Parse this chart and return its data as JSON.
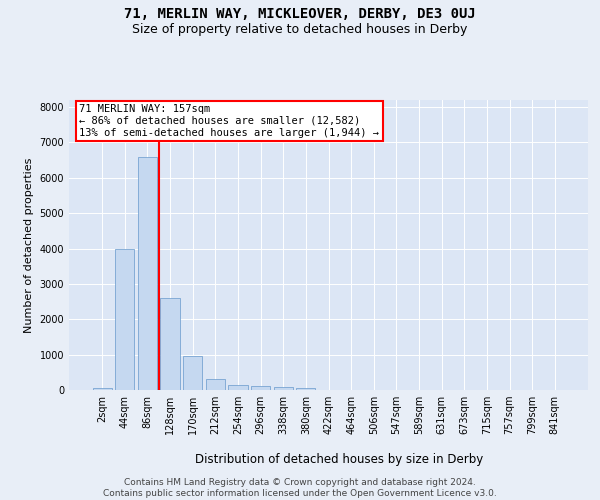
{
  "title": "71, MERLIN WAY, MICKLEOVER, DERBY, DE3 0UJ",
  "subtitle": "Size of property relative to detached houses in Derby",
  "xlabel": "Distribution of detached houses by size in Derby",
  "ylabel": "Number of detached properties",
  "bin_labels": [
    "2sqm",
    "44sqm",
    "86sqm",
    "128sqm",
    "170sqm",
    "212sqm",
    "254sqm",
    "296sqm",
    "338sqm",
    "380sqm",
    "422sqm",
    "464sqm",
    "506sqm",
    "547sqm",
    "589sqm",
    "631sqm",
    "673sqm",
    "715sqm",
    "757sqm",
    "799sqm",
    "841sqm"
  ],
  "bar_values": [
    70,
    4000,
    6600,
    2600,
    950,
    310,
    130,
    120,
    90,
    60,
    0,
    0,
    0,
    0,
    0,
    0,
    0,
    0,
    0,
    0,
    0
  ],
  "bar_color": "#c5d8f0",
  "bar_edgecolor": "#6699cc",
  "property_line_x": 2.5,
  "annotation_text": "71 MERLIN WAY: 157sqm\n← 86% of detached houses are smaller (12,582)\n13% of semi-detached houses are larger (1,944) →",
  "annotation_box_color": "white",
  "annotation_box_edgecolor": "red",
  "vline_color": "red",
  "ylim": [
    0,
    8200
  ],
  "yticks": [
    0,
    1000,
    2000,
    3000,
    4000,
    5000,
    6000,
    7000,
    8000
  ],
  "footnote": "Contains HM Land Registry data © Crown copyright and database right 2024.\nContains public sector information licensed under the Open Government Licence v3.0.",
  "bg_color": "#e8eef7",
  "plot_bg_color": "#dce6f5",
  "grid_color": "#ffffff",
  "title_fontsize": 10,
  "subtitle_fontsize": 9,
  "xlabel_fontsize": 8.5,
  "ylabel_fontsize": 8,
  "tick_fontsize": 7,
  "footnote_fontsize": 6.5,
  "annotation_fontsize": 7.5
}
